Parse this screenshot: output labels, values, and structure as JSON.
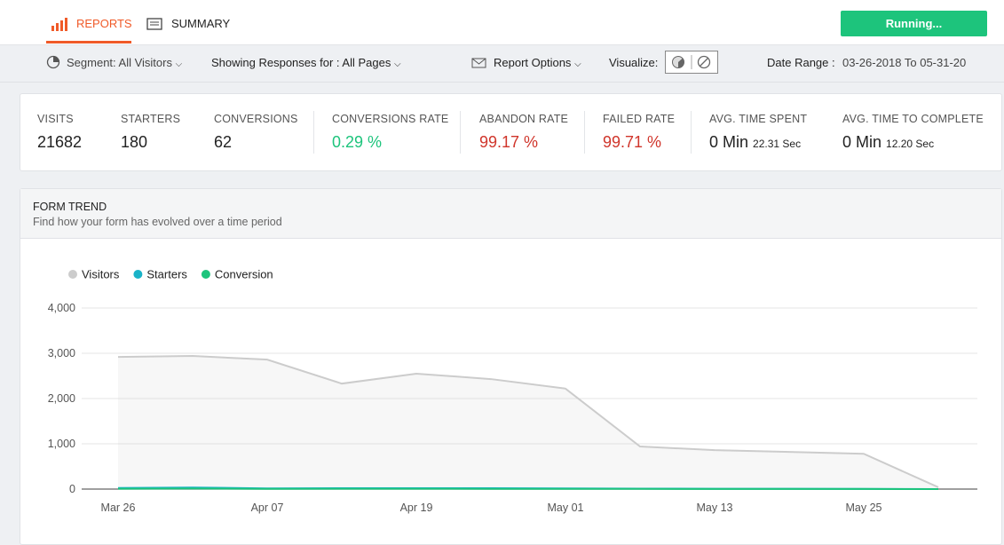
{
  "header": {
    "tabs": [
      "REPORTS",
      "SUMMARY"
    ],
    "button": "Running..."
  },
  "toolbar": {
    "segment": "Segment: All Visitors",
    "showing": "Showing Responses for : All Pages",
    "report_options": "Report Options",
    "visualize": "Visualize:",
    "date_range_label": "Date Range :",
    "date_range": "03-26-2018 To 05-31-20"
  },
  "stats": [
    {
      "label": "VISITS",
      "value": "21682"
    },
    {
      "label": "STARTERS",
      "value": "180"
    },
    {
      "label": "CONVERSIONS",
      "value": "62"
    },
    {
      "label": "CONVERSIONS RATE",
      "value": "0.29 %"
    },
    {
      "label": "ABANDON RATE",
      "value": "99.17 %"
    },
    {
      "label": "FAILED RATE",
      "value": "99.71 %"
    },
    {
      "label": "AVG. TIME SPENT",
      "value": "0 Min",
      "detail": "22.31 Sec"
    },
    {
      "label": "AVG. TIME TO COMPLETE",
      "value": "0 Min",
      "detail": "12.20 Sec"
    }
  ],
  "chart_data": {
    "type": "line",
    "title": "FORM TREND",
    "subtitle": "Find how your form has evolved over a time period",
    "categories": [
      "Mar 26",
      null,
      "Apr 07",
      null,
      "Apr 19",
      null,
      "May 01",
      null,
      "May 13",
      null,
      "May 25",
      null
    ],
    "series": [
      {
        "name": "Visitors",
        "color": "#cccccc",
        "values": [
          2920,
          2940,
          2860,
          2330,
          2550,
          2430,
          2220,
          940,
          860,
          820,
          780,
          40
        ]
      },
      {
        "name": "Starters",
        "color": "#1ab3c8",
        "values": [
          25,
          35,
          15,
          20,
          20,
          20,
          15,
          10,
          8,
          7,
          5,
          0
        ]
      },
      {
        "name": "Conversion",
        "color": "#1dc47c",
        "values": [
          8,
          12,
          5,
          7,
          7,
          6,
          5,
          4,
          3,
          3,
          2,
          0
        ]
      }
    ],
    "ylim": [
      0,
      4000
    ],
    "yticks": [
      0,
      {
        "value": 1000,
        "label": "1,000"
      },
      {
        "value": 2000,
        "label": "2,000"
      },
      {
        "value": 3000,
        "label": "3,000"
      },
      {
        "value": 4000,
        "label": "4,000"
      }
    ],
    "grid": true,
    "legend": "top-left"
  }
}
